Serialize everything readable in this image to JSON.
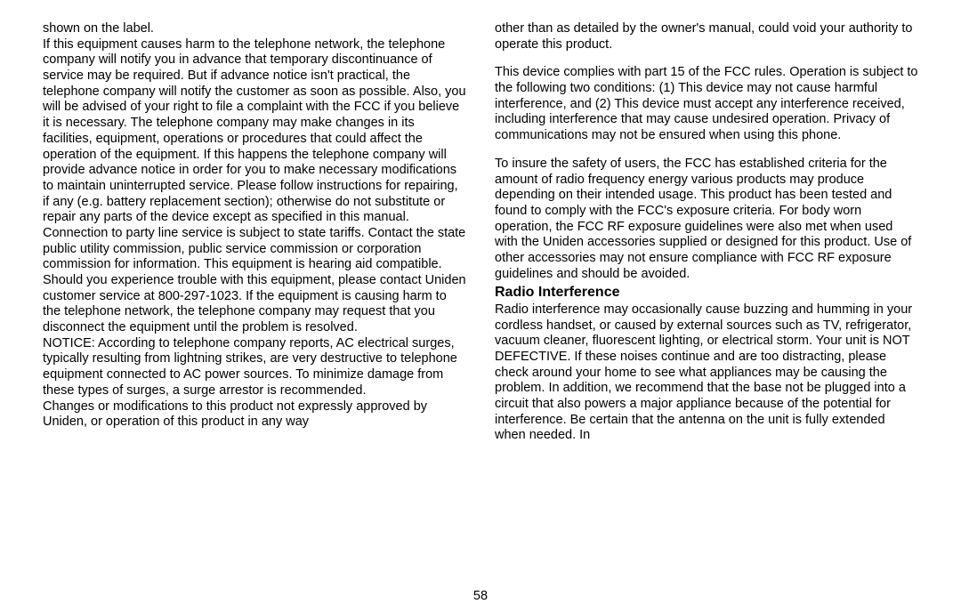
{
  "page_number": "58",
  "left_column": {
    "p1": "shown on the label.",
    "p2": "If this equipment causes harm to the telephone network, the telephone company will notify you in advance that temporary discontinuance of service may be required. But if advance notice isn't practical, the telephone company will notify the customer as soon as possible. Also, you will be advised of your right to file a complaint with the FCC if you believe it is necessary. The telephone company may make changes in its facilities, equipment, operations or procedures that could affect the operation of the equipment. If this happens the telephone company will provide advance notice in order for you to make necessary modifications to maintain uninterrupted service. Please follow instructions for repairing, if any (e.g. battery replacement section); otherwise do not substitute or repair any parts of the device except as specified in this manual. Connection to party line service is subject to state tariffs. Contact the state public utility commission, public service commission or corporation commission for information. This equipment is hearing aid compatible.",
    "p3": "Should you experience trouble with this equipment, please contact Uniden customer service at 800-297-1023. If the equipment is causing harm to the telephone network, the telephone company may request that you disconnect the equipment until the problem is resolved.",
    "p4": "NOTICE: According to telephone company reports, AC electrical surges, typically resulting from lightning strikes, are very destructive to telephone equipment connected to AC power sources. To minimize damage from these types of surges, a surge arrestor is recommended.",
    "p5": "Changes or modifications to this product not expressly approved by Uniden, or operation of this product in any way"
  },
  "right_column": {
    "p1": "other than as detailed by the owner's manual, could void your authority to operate this product.",
    "p2": "This device complies with part 15 of the FCC rules. Operation is subject to the following two conditions: (1) This device may not cause harmful interference, and (2) This device must accept any interference received, including interference that may cause undesired operation. Privacy of communications may not be ensured when using this phone.",
    "p3": "To insure the safety of users, the FCC has established criteria for the amount of radio frequency energy various products may produce depending on their intended usage. This product has been tested and found to comply with the FCC's exposure criteria. For body worn operation, the FCC RF exposure guidelines were also met when used with the Uniden accessories supplied or designed for this product. Use of other accessories may not ensure compliance with FCC RF exposure guidelines and should be avoided.",
    "heading": "Radio Interference",
    "p4": "Radio interference may occasionally cause buzzing and humming in your cordless handset, or caused by external sources such as TV, refrigerator, vacuum cleaner, fluorescent lighting, or electrical storm. Your unit is NOT DEFECTIVE. If these noises continue and are too distracting, please check around your home to see what appliances may be causing the problem. In addition, we recommend that the base not be plugged into a circuit that also powers a major appliance because of the potential for interference. Be certain that the antenna on the unit is fully extended when needed. In"
  }
}
